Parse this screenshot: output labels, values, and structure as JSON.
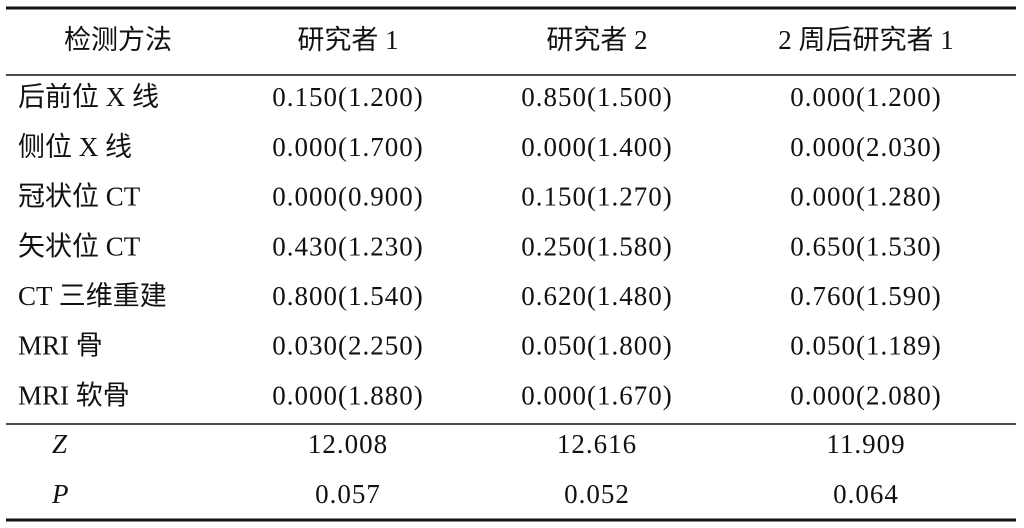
{
  "table": {
    "header": [
      "检测方法",
      "研究者 1",
      "研究者 2",
      "2 周后研究者 1"
    ],
    "rows": [
      [
        "后前位 X 线",
        "0.150(1.200)",
        "0.850(1.500)",
        "0.000(1.200)"
      ],
      [
        "侧位 X 线",
        "0.000(1.700)",
        "0.000(1.400)",
        "0.000(2.030)"
      ],
      [
        "冠状位 CT",
        "0.000(0.900)",
        "0.150(1.270)",
        "0.000(1.280)"
      ],
      [
        "矢状位 CT",
        "0.430(1.230)",
        "0.250(1.580)",
        "0.650(1.530)"
      ],
      [
        "CT 三维重建",
        "0.800(1.540)",
        "0.620(1.480)",
        "0.760(1.590)"
      ],
      [
        "MRI 骨",
        "0.030(2.250)",
        "0.050(1.800)",
        "0.050(1.189)"
      ],
      [
        "MRI 软骨",
        "0.000(1.880)",
        "0.000(1.670)",
        "0.000(2.080)"
      ]
    ],
    "stats": [
      [
        "Z",
        "12.008",
        "12.616",
        "11.909"
      ],
      [
        "P",
        "0.057",
        "0.052",
        "0.064"
      ]
    ]
  }
}
